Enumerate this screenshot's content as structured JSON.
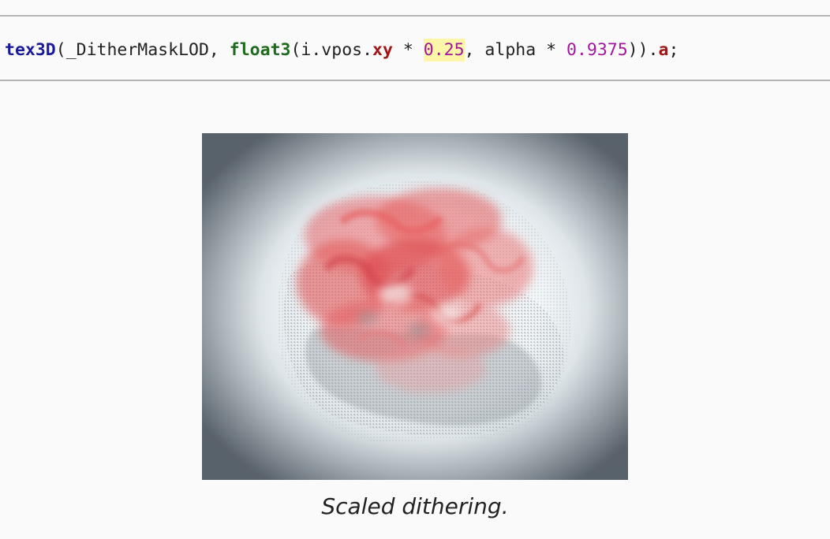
{
  "code": {
    "func_name": "tex3D",
    "paren_open": "(",
    "arg1": "_DitherMaskLOD, ",
    "type_name": "float3",
    "arg2": "(i.vpos.",
    "member_xy": "xy",
    "op1": " * ",
    "num_scale": "0.25",
    "arg3": ", alpha * ",
    "num_alpha": "0.9375",
    "close": ")).",
    "member_a": "a",
    "semicolon": ";"
  },
  "figure": {
    "image_semantic": "dithered-red-smoke-sphere-render",
    "colors": {
      "background_edge": "#5a6269",
      "glow": "#f4f8fa",
      "smoke_red": "#e02a2a"
    }
  },
  "caption": {
    "text": "Scaled dithering."
  }
}
